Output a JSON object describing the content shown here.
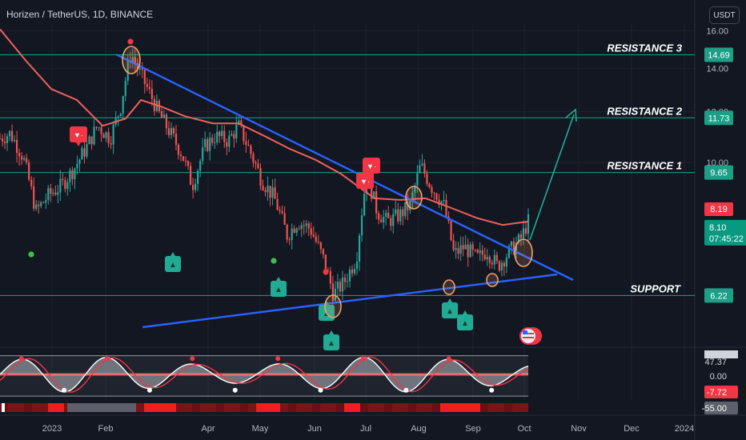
{
  "header": {
    "title": "Horizen / TetherUS, 1D, BINANCE",
    "currency": "USDT"
  },
  "colors": {
    "background": "#131722",
    "grid": "#1f2330",
    "up": "#26a69a",
    "down": "#ef5350",
    "ma": "#f0605d",
    "trendline": "#2962ff",
    "level": "#1e9e87",
    "arrow": "#22ab94",
    "highlight": "#f5a06a"
  },
  "chart_data": [
    {
      "type": "candlestick",
      "symbol": "Horizen / TetherUS",
      "interval": "1D",
      "exchange": "BINANCE",
      "ylim": [
        5.2,
        16.4
      ],
      "y_scale": "log",
      "y_ticks": [
        16.0,
        14.0,
        12.0,
        10.0
      ],
      "x_ticks": [
        "2023",
        "Feb",
        "Apr",
        "May",
        "Jun",
        "Jul",
        "Aug",
        "Sep",
        "Oct",
        "Nov",
        "Dec",
        "2024"
      ],
      "levels": [
        {
          "label": "RESISTANCE 3",
          "value": 14.69,
          "value_label": "14.69"
        },
        {
          "label": "RESISTANCE 2",
          "value": 11.73,
          "value_label": "11.73"
        },
        {
          "label": "RESISTANCE 1",
          "value": 9.65,
          "value_label": "9.65"
        },
        {
          "label": "SUPPORT",
          "value": 6.22,
          "value_label": "6.22"
        }
      ],
      "ma_badge": {
        "value": 8.19,
        "label": "8.19"
      },
      "price_badge": {
        "value": 8.1,
        "label": "8.10",
        "countdown": "07:45:22"
      },
      "descending_trendline": {
        "from": [
          "Feb",
          15.5
        ],
        "to": [
          "Oct",
          7.0
        ]
      },
      "ascending_trendline": {
        "from": [
          "2023",
          5.55
        ],
        "to": [
          "Oct",
          7.1
        ]
      },
      "projection_arrow": {
        "from": [
          "Oct",
          8.1
        ],
        "to": [
          "Oct",
          13.3
        ]
      },
      "series": [
        {
          "kind": "price",
          "points": [
            [
              0,
              10.9
            ],
            [
              0.4,
              11.1
            ],
            [
              0.9,
              10.2
            ],
            [
              1.4,
              8.4
            ],
            [
              1.9,
              8.9
            ],
            [
              2.4,
              9.2
            ],
            [
              2.9,
              9.8
            ],
            [
              3.4,
              10.6
            ],
            [
              3.8,
              11.4
            ],
            [
              4.3,
              10.9
            ],
            [
              4.7,
              12.2
            ],
            [
              5.1,
              14.8
            ],
            [
              5.4,
              13.9
            ],
            [
              5.8,
              12.9
            ],
            [
              6.2,
              11.9
            ],
            [
              6.7,
              11.0
            ],
            [
              7.1,
              10.3
            ],
            [
              7.5,
              9.2
            ],
            [
              8.0,
              10.6
            ],
            [
              8.4,
              11.0
            ],
            [
              8.9,
              10.8
            ],
            [
              9.3,
              11.4
            ],
            [
              9.8,
              10.3
            ],
            [
              10.2,
              9.4
            ],
            [
              10.7,
              8.8
            ],
            [
              11.2,
              7.7
            ],
            [
              11.6,
              8.1
            ],
            [
              12.1,
              7.9
            ],
            [
              12.6,
              7.1
            ],
            [
              13.0,
              6.25
            ],
            [
              13.4,
              6.5
            ],
            [
              13.9,
              7.1
            ],
            [
              14.3,
              9.6
            ],
            [
              14.7,
              8.4
            ],
            [
              15.1,
              8.1
            ],
            [
              15.6,
              8.3
            ],
            [
              16.0,
              8.6
            ],
            [
              16.4,
              9.9
            ],
            [
              16.8,
              9.2
            ],
            [
              17.3,
              8.6
            ],
            [
              17.7,
              7.2
            ],
            [
              18.1,
              7.4
            ],
            [
              18.6,
              7.1
            ],
            [
              19.0,
              7.3
            ],
            [
              19.4,
              6.9
            ],
            [
              19.9,
              7.3
            ],
            [
              20.3,
              7.6
            ],
            [
              20.6,
              8.1
            ]
          ]
        },
        {
          "kind": "moving_average",
          "points": [
            [
              0,
              16.1
            ],
            [
              1,
              14.4
            ],
            [
              2,
              13.0
            ],
            [
              3,
              12.5
            ],
            [
              4,
              11.4
            ],
            [
              4.9,
              11.7
            ],
            [
              5.5,
              12.5
            ],
            [
              6.3,
              12.2
            ],
            [
              7.2,
              11.8
            ],
            [
              8.3,
              11.5
            ],
            [
              9.3,
              11.5
            ],
            [
              10.3,
              11.0
            ],
            [
              11.3,
              10.5
            ],
            [
              12.3,
              10.1
            ],
            [
              13.3,
              9.6
            ],
            [
              14.1,
              9.1
            ],
            [
              14.6,
              8.8
            ],
            [
              15.6,
              8.75
            ],
            [
              16.6,
              8.8
            ],
            [
              17.6,
              8.5
            ],
            [
              18.6,
              8.2
            ],
            [
              19.6,
              8.0
            ],
            [
              20.6,
              8.1
            ]
          ]
        }
      ],
      "signals": {
        "sell_markers": [
          [
            "Jan",
            12.3
          ],
          [
            "Jul",
            10.9
          ],
          [
            "Jul",
            10.3
          ]
        ],
        "buy_markers": [
          [
            "Mar",
            7.0
          ],
          [
            "May",
            6.5
          ],
          [
            "Jun",
            6.05
          ],
          [
            "Jul",
            5.55
          ],
          [
            "Aug",
            6.0
          ],
          [
            "Sep",
            5.8
          ]
        ],
        "green_dots": [
          [
            "2023",
            7.5
          ],
          [
            "May",
            7.3
          ]
        ],
        "red_dots": [
          [
            "Feb",
            15.9
          ],
          [
            "Jun",
            6.8
          ]
        ],
        "highlighted_pivots": [
          [
            "Feb",
            15.0
          ],
          [
            "Jun",
            6.25
          ],
          [
            "Aug",
            9.85
          ],
          [
            "Aug",
            6.55
          ],
          [
            "Sep",
            6.7
          ],
          [
            "Oct",
            8.15
          ]
        ]
      }
    },
    {
      "type": "line",
      "name": "oscillator",
      "y_ticks": [
        47.37,
        0.0,
        -7.72,
        -55.0
      ],
      "tick_labels": [
        "47.37",
        "0.00",
        "-7.72",
        "-55.00"
      ],
      "ylim": [
        -65,
        65
      ]
    }
  ]
}
